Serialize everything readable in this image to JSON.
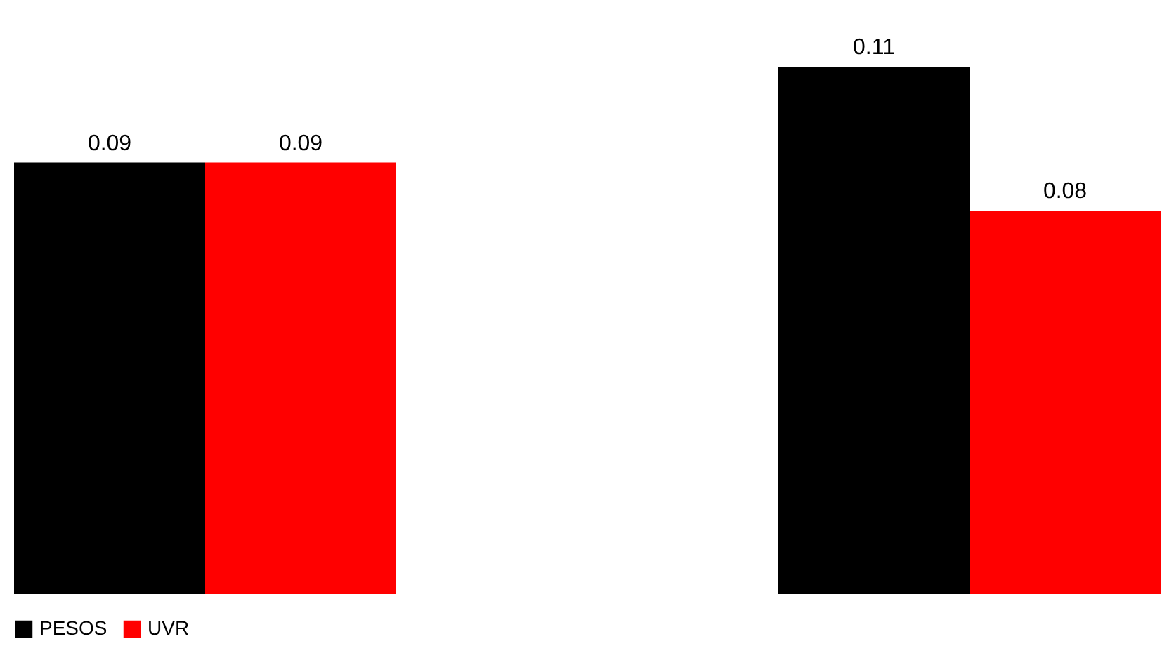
{
  "chart_data": {
    "type": "bar",
    "categories": [
      null,
      null
    ],
    "series": [
      {
        "name": "PESOS",
        "color": "#000000",
        "values": [
          0.09,
          0.11
        ]
      },
      {
        "name": "UVR",
        "color": "#ff0000",
        "values": [
          0.09,
          0.08
        ]
      }
    ],
    "data_labels": true,
    "legend": "bottom",
    "grid": false
  }
}
